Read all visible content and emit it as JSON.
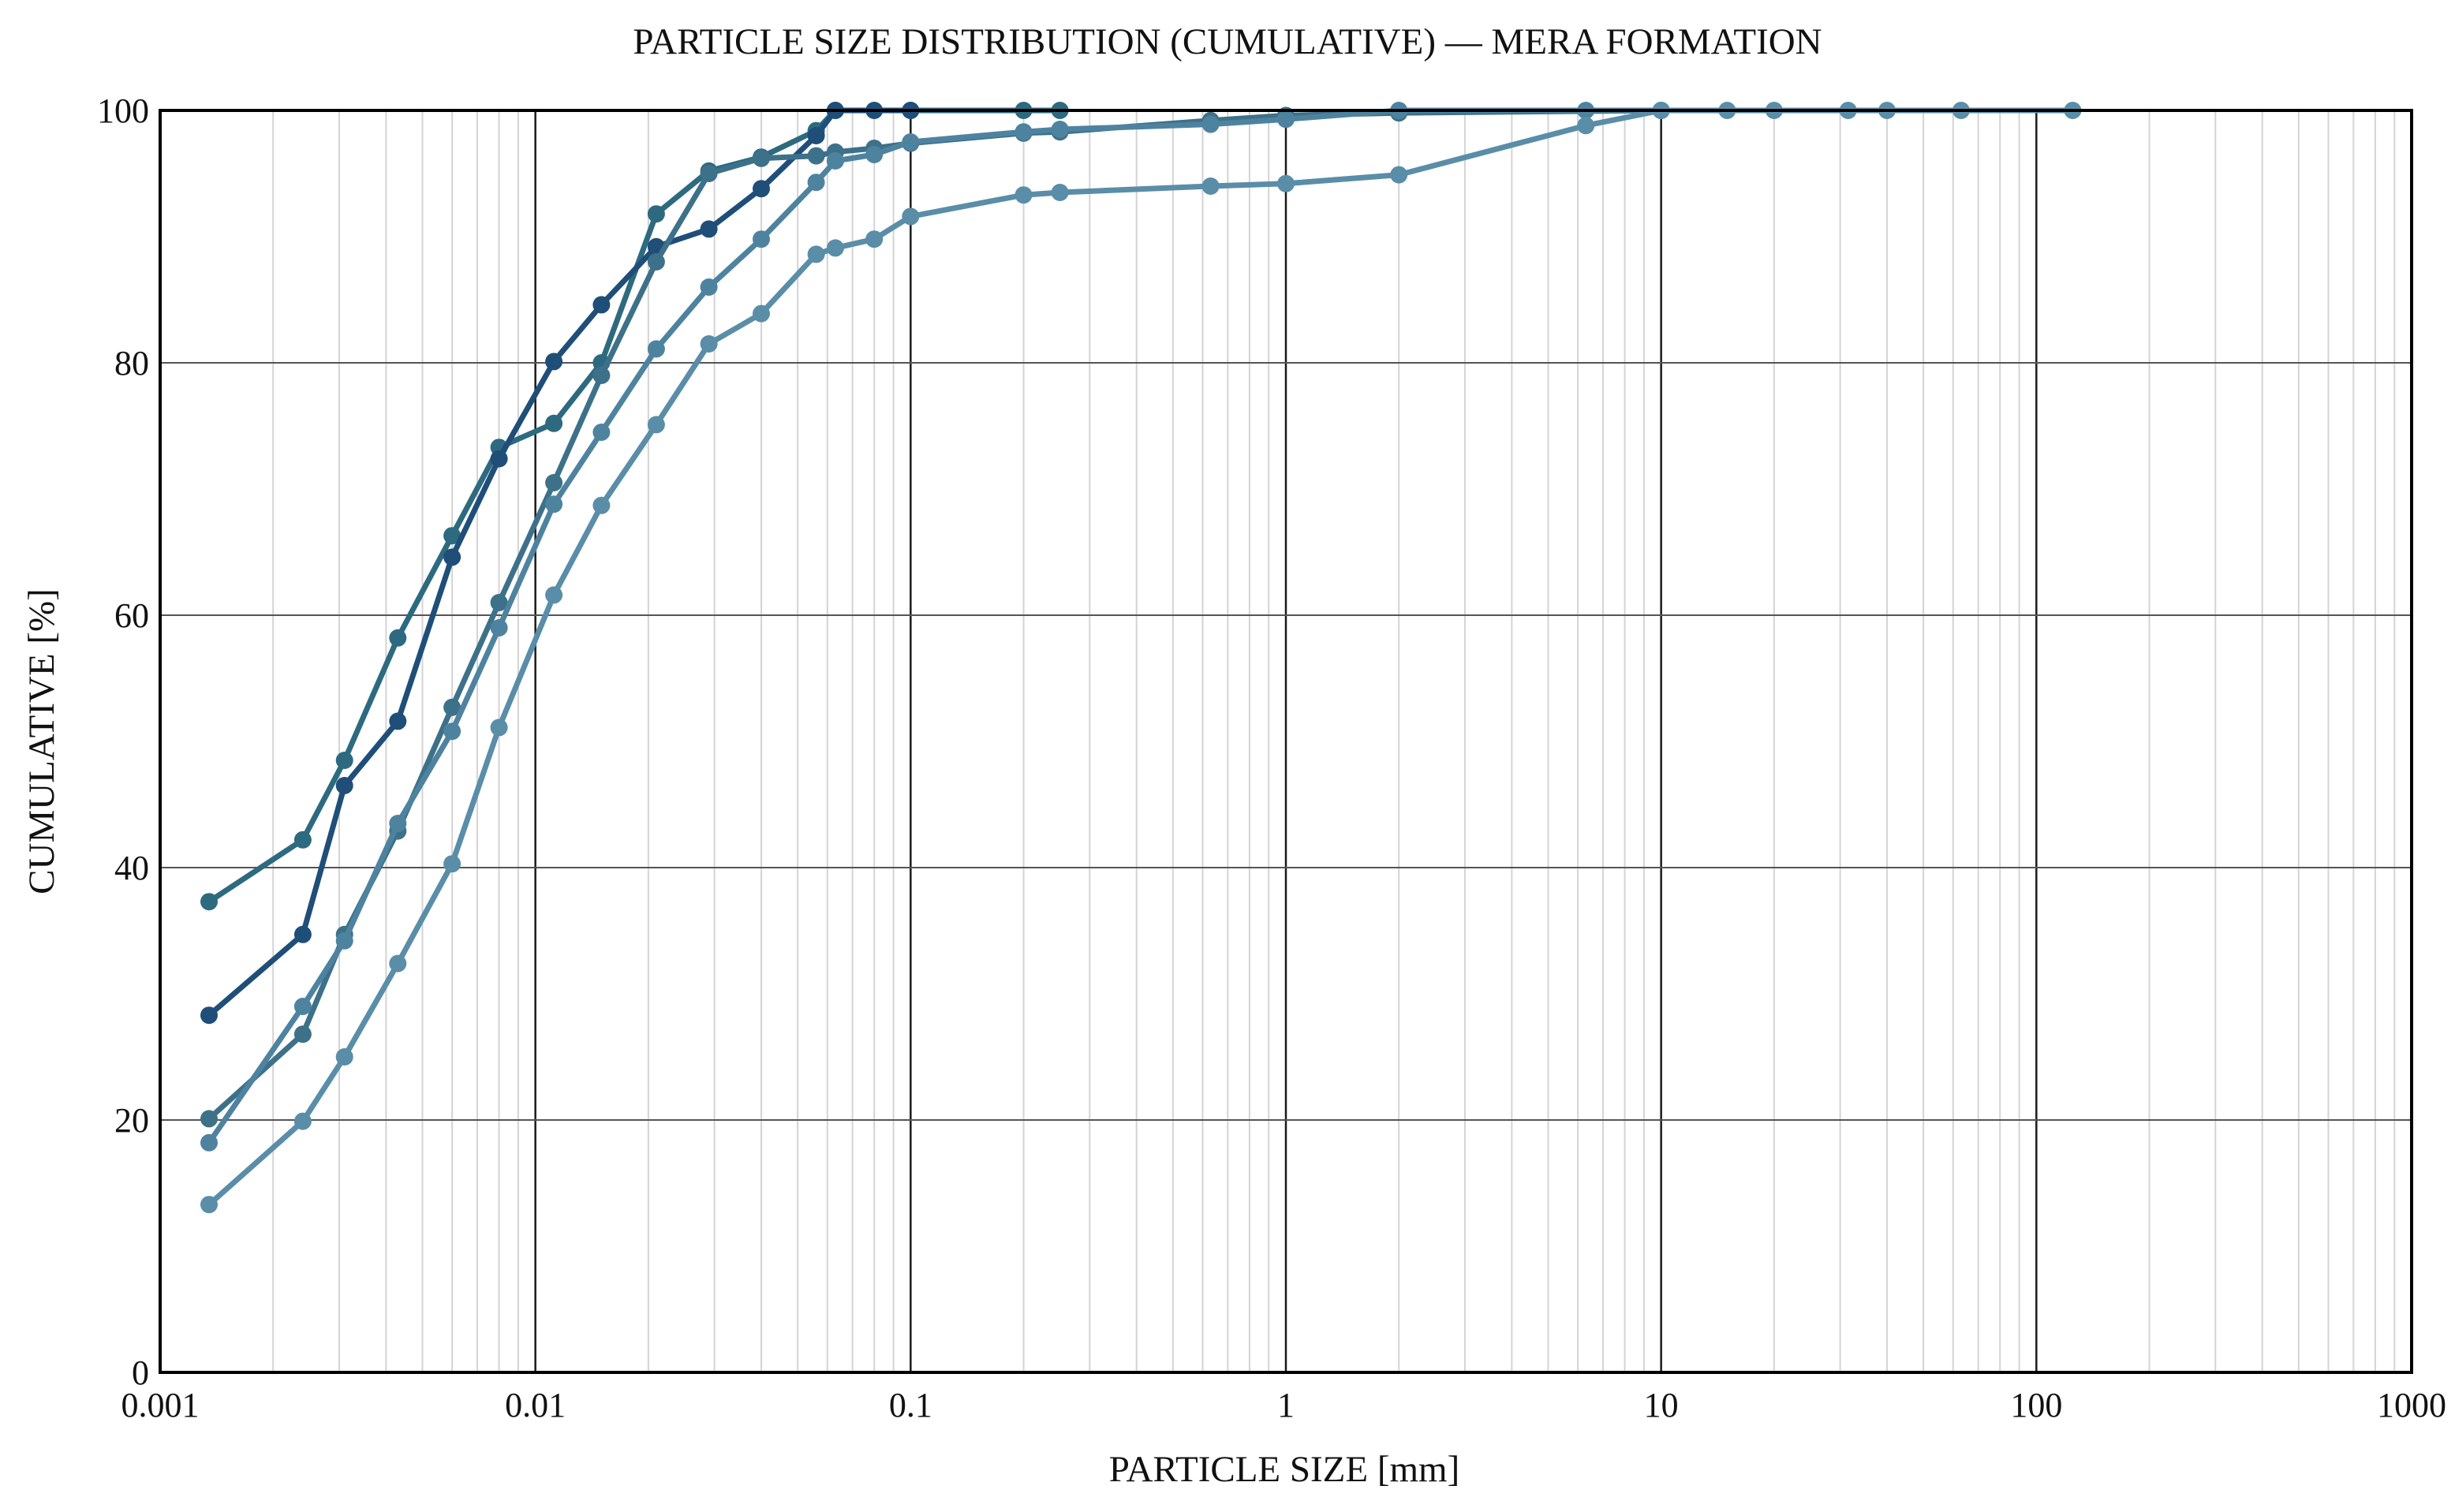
{
  "chart_data": {
    "type": "line",
    "title": "PARTICLE SIZE DISTRIBUTION (CUMULATIVE) — MERA FORMATION",
    "xlabel": "PARTICLE SIZE [mm]",
    "ylabel": "CUMULATIVE [%]",
    "x_scale": "log",
    "xlim": [
      0.001,
      1000
    ],
    "ylim": [
      0,
      100
    ],
    "grid": true,
    "legend": "none",
    "x_ticks": [
      {
        "value": 0.001,
        "label": "0.001"
      },
      {
        "value": 0.01,
        "label": "0.01"
      },
      {
        "value": 0.1,
        "label": "0.1"
      },
      {
        "value": 1,
        "label": "1"
      },
      {
        "value": 10,
        "label": "10"
      },
      {
        "value": 100,
        "label": "100"
      },
      {
        "value": 1000,
        "label": "1000"
      }
    ],
    "y_ticks": [
      {
        "value": 0,
        "label": "0"
      },
      {
        "value": 20,
        "label": "20"
      },
      {
        "value": 40,
        "label": "40"
      },
      {
        "value": 60,
        "label": "60"
      },
      {
        "value": 80,
        "label": "80"
      },
      {
        "value": 100,
        "label": "100"
      }
    ],
    "series": [
      {
        "color": "#2d6a7f",
        "points": [
          [
            0.00135,
            37.3
          ],
          [
            0.0024,
            42.2
          ],
          [
            0.0031,
            48.5
          ],
          [
            0.0043,
            58.2
          ],
          [
            0.006,
            66.3
          ],
          [
            0.008,
            73.3
          ],
          [
            0.0112,
            75.2
          ],
          [
            0.015,
            80.0
          ],
          [
            0.021,
            91.8
          ],
          [
            0.029,
            95.2
          ],
          [
            0.04,
            96.3
          ],
          [
            0.056,
            98.4
          ],
          [
            0.063,
            100.0
          ],
          [
            0.1,
            100.0
          ],
          [
            0.2,
            100.0
          ],
          [
            0.25,
            100.0
          ]
        ]
      },
      {
        "color": "#1f4e79",
        "points": [
          [
            0.00135,
            28.3
          ],
          [
            0.0024,
            34.7
          ],
          [
            0.0031,
            46.5
          ],
          [
            0.0043,
            51.6
          ],
          [
            0.006,
            64.6
          ],
          [
            0.008,
            72.4
          ],
          [
            0.0112,
            80.1
          ],
          [
            0.015,
            84.6
          ],
          [
            0.021,
            89.2
          ],
          [
            0.029,
            90.6
          ],
          [
            0.04,
            93.8
          ],
          [
            0.056,
            98.0
          ],
          [
            0.063,
            100.0
          ],
          [
            0.08,
            100.0
          ],
          [
            0.1,
            100.0
          ]
        ]
      },
      {
        "color": "#3d7189",
        "points": [
          [
            0.00135,
            20.1
          ],
          [
            0.0024,
            26.8
          ],
          [
            0.0031,
            34.7
          ],
          [
            0.0043,
            42.9
          ],
          [
            0.006,
            52.7
          ],
          [
            0.008,
            61.0
          ],
          [
            0.0112,
            70.5
          ],
          [
            0.015,
            79.0
          ],
          [
            0.021,
            88.0
          ],
          [
            0.029,
            95.0
          ],
          [
            0.04,
            96.2
          ],
          [
            0.056,
            96.4
          ],
          [
            0.063,
            96.7
          ],
          [
            0.08,
            97.0
          ],
          [
            0.1,
            97.4
          ],
          [
            0.2,
            98.2
          ],
          [
            0.25,
            98.3
          ],
          [
            0.63,
            99.2
          ],
          [
            1,
            99.6
          ],
          [
            2,
            99.8
          ],
          [
            10,
            100.0
          ]
        ]
      },
      {
        "color": "#4e83a0",
        "points": [
          [
            0.00135,
            18.2
          ],
          [
            0.0024,
            29.0
          ],
          [
            0.0031,
            34.2
          ],
          [
            0.0043,
            43.5
          ],
          [
            0.006,
            50.8
          ],
          [
            0.008,
            59.0
          ],
          [
            0.0112,
            68.8
          ],
          [
            0.015,
            74.5
          ],
          [
            0.021,
            81.1
          ],
          [
            0.029,
            86.0
          ],
          [
            0.04,
            89.8
          ],
          [
            0.056,
            94.3
          ],
          [
            0.063,
            96.0
          ],
          [
            0.08,
            96.5
          ],
          [
            0.1,
            97.5
          ],
          [
            0.2,
            98.3
          ],
          [
            0.25,
            98.5
          ],
          [
            0.63,
            98.9
          ],
          [
            1,
            99.3
          ],
          [
            2,
            100.0
          ],
          [
            6.3,
            100.0
          ],
          [
            10,
            100.0
          ]
        ]
      },
      {
        "color": "#5a8da8",
        "points": [
          [
            0.00135,
            13.3
          ],
          [
            0.0024,
            19.9
          ],
          [
            0.0031,
            25.0
          ],
          [
            0.0043,
            32.4
          ],
          [
            0.006,
            40.3
          ],
          [
            0.008,
            51.1
          ],
          [
            0.0112,
            61.6
          ],
          [
            0.015,
            68.7
          ],
          [
            0.021,
            75.1
          ],
          [
            0.029,
            81.5
          ],
          [
            0.04,
            83.9
          ],
          [
            0.056,
            88.6
          ],
          [
            0.063,
            89.1
          ],
          [
            0.08,
            89.8
          ],
          [
            0.1,
            91.6
          ],
          [
            0.2,
            93.3
          ],
          [
            0.25,
            93.5
          ],
          [
            0.63,
            94.0
          ],
          [
            1,
            94.2
          ],
          [
            2,
            94.9
          ],
          [
            6.3,
            98.8
          ],
          [
            10,
            100.0
          ],
          [
            15,
            100.0
          ],
          [
            20,
            100.0
          ],
          [
            31.5,
            100.0
          ],
          [
            40,
            100.0
          ],
          [
            63,
            100.0
          ],
          [
            125,
            100.0
          ]
        ]
      }
    ]
  }
}
